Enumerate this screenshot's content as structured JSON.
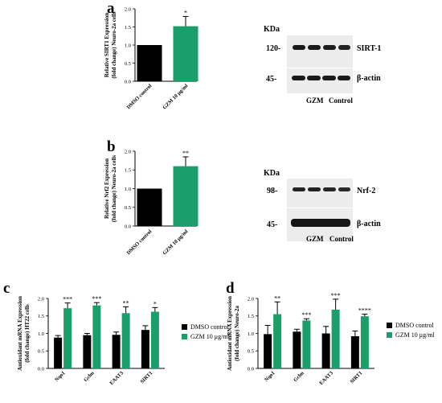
{
  "panels": [
    {
      "letter": "a"
    },
    {
      "letter": "b"
    },
    {
      "letter": "c"
    },
    {
      "letter": "d"
    }
  ],
  "colors": {
    "dmso": "#000000",
    "gzm": "#1a9e6a",
    "blot_bg": "#e8e8e8",
    "band": "#1a1a1a"
  },
  "chart_data": [
    {
      "type": "bar",
      "ylabel": "Relative SIRT1 Expression (fold change) Neuro-2a cells",
      "categories": [
        "DMSO control",
        "GZM 10 μg/ml"
      ],
      "values": [
        1.0,
        1.52
      ],
      "errors": [
        0,
        0.27
      ],
      "significance": [
        "",
        "*"
      ],
      "ylim": [
        0,
        2.0
      ],
      "yticks": [
        "0.0",
        "0.5",
        "1.0",
        "1.5",
        "2.0"
      ]
    },
    {
      "type": "bar",
      "ylabel": "Relative Nrf2 Expression (fold change) Neuro-2a cells",
      "categories": [
        "DMSO control",
        "GZM 10 μg/ml"
      ],
      "values": [
        1.0,
        1.6
      ],
      "errors": [
        0,
        0.25
      ],
      "significance": [
        "",
        "**"
      ],
      "ylim": [
        0,
        2.0
      ],
      "yticks": [
        "0.0",
        "0.5",
        "1.0",
        "1.5",
        "2.0"
      ]
    },
    {
      "type": "bar",
      "ylabel": "Antioxidant mRNA Expression (fold change) HT22 cells",
      "categories": [
        "Nqo1",
        "Gclm",
        "EAAT3",
        "SIRT1"
      ],
      "series": [
        {
          "name": "DMSO control",
          "values": [
            0.88,
            0.95,
            0.96,
            1.1
          ],
          "errors": [
            0.06,
            0.05,
            0.08,
            0.12
          ]
        },
        {
          "name": "GZM 10 μg/ml",
          "values": [
            1.72,
            1.8,
            1.58,
            1.62
          ],
          "errors": [
            0.15,
            0.08,
            0.18,
            0.12
          ]
        }
      ],
      "significance": [
        "***",
        "***",
        "**",
        "*"
      ],
      "ylim": [
        0,
        2.0
      ],
      "yticks": [
        "0.0",
        "0.5",
        "1.0",
        "1.5",
        "2.0"
      ],
      "legend": "right"
    },
    {
      "type": "bar",
      "ylabel": "Antioxidant mRNA Expression (fold change) Neuro-2a",
      "categories": [
        "Nqo1",
        "Gclm",
        "EAAT3",
        "SIRT1"
      ],
      "series": [
        {
          "name": "DMSO control",
          "values": [
            0.98,
            1.05,
            1.0,
            0.92
          ],
          "errors": [
            0.25,
            0.07,
            0.2,
            0.15
          ]
        },
        {
          "name": "GZM 10 μg/ml",
          "values": [
            1.55,
            1.37,
            1.68,
            1.49
          ],
          "errors": [
            0.35,
            0.05,
            0.3,
            0.06
          ]
        }
      ],
      "significance": [
        "**",
        "***",
        "***",
        "****"
      ],
      "ylim": [
        0,
        2.0
      ],
      "yticks": [
        "0.0",
        "0.5",
        "1.0",
        "1.5",
        "2.0"
      ],
      "legend": "right"
    }
  ],
  "blots": [
    {
      "header": "KDa",
      "rows": [
        {
          "kda": "120-",
          "protein": "SIRT-1"
        },
        {
          "kda": "45-",
          "protein": "β-actin"
        }
      ],
      "lanes": [
        "GZM",
        "Control"
      ]
    },
    {
      "header": "KDa",
      "rows": [
        {
          "kda": "98-",
          "protein": "Nrf-2"
        },
        {
          "kda": "45-",
          "protein": "β-actin"
        }
      ],
      "lanes": [
        "GZM",
        "Control"
      ]
    }
  ]
}
